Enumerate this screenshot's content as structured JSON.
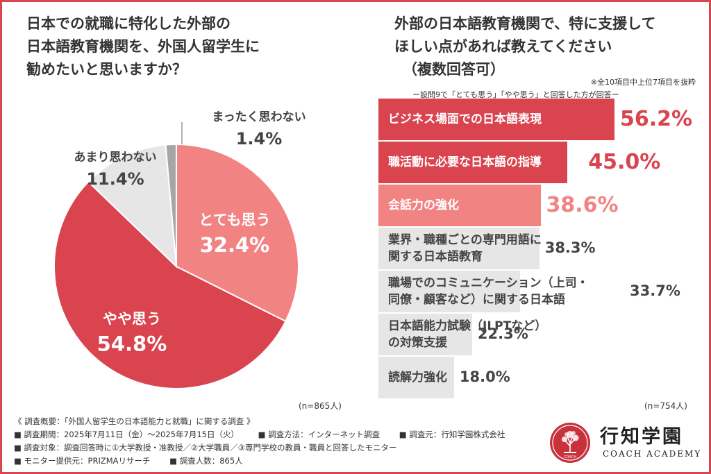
{
  "left_title": {
    "line1": "日本での就職に特化した外部の",
    "line2": "日本語教育機関を、外国人留学生に",
    "line3": "勧めたいと思いますか？"
  },
  "right_title": {
    "line1": "外部の日本語教育機関で、特に支援して",
    "line2": "ほしい点があれば教えてください",
    "line3": "（複数回答可）"
  },
  "right_note": "※全10項目中上位7項目を抜粋",
  "right_subnote": "ー設問9で「とても思う」「やや思う」と回答した方が回答ー",
  "n_left": "(n=865人)",
  "n_right": "(n=754人)",
  "colors": {
    "frame": "#d94550",
    "dark_red": "#d9444f",
    "pink": "#f28383",
    "light_gray": "#e6e6e6",
    "mid_gray": "#a6a6a6"
  },
  "chart_data": [
    {
      "type": "pie",
      "slices": [
        {
          "label": "とても思う",
          "value": 32.4,
          "value_text": "32.4%",
          "color": "#f28383"
        },
        {
          "label": "やや思う",
          "value": 54.8,
          "value_text": "54.8%",
          "color": "#d9444f"
        },
        {
          "label": "あまり思わない",
          "value": 11.4,
          "value_text": "11.4%",
          "color": "#e6e6e6"
        },
        {
          "label": "まったく思わない",
          "value": 1.4,
          "value_text": "1.4%",
          "color": "#a6a6a6"
        }
      ]
    },
    {
      "type": "bar",
      "orientation": "horizontal",
      "categories": [
        [
          "ビジネス場面での日本語表現"
        ],
        [
          "職活動に必要な日本語の指導"
        ],
        [
          "会話力の強化"
        ],
        [
          "業界・職種ごとの専門用語に",
          "関する日本語教育"
        ],
        [
          "職場でのコミュニケーション（上司・",
          "同僚・顧客など）に関する日本語"
        ],
        [
          "日本語能力試験（JLPTなど）",
          "の対策支援"
        ],
        [
          "読解力強化"
        ]
      ],
      "values": [
        56.2,
        45.0,
        38.6,
        38.3,
        33.7,
        22.3,
        18.0
      ],
      "value_texts": [
        "56.2%",
        "45.0%",
        "38.6%",
        "38.3%",
        "33.7%",
        "22.3%",
        "18.0%"
      ],
      "colors": [
        "#d9444f",
        "#d9444f",
        "#f28383",
        "#e6e6e6",
        "#e6e6e6",
        "#e6e6e6",
        "#e6e6e6"
      ]
    }
  ],
  "footer": {
    "overview": "《 調査概要：「外国人留学生の日本語能力と就職」に関する調査 》",
    "period": "■ 調査期間：2025年7月11日（金）〜2025年7月15日（火）",
    "method": "■ 調査方法：インターネット調査",
    "organizer": "■ 調査元：行知学園株式会社",
    "target": "■ 調査対象：調査回答時に①大学教授・准教授／②大学職員／③専門学校の教員・職員と回答したモニター",
    "provider": "■ モニター提供元：PRIZMAリサーチ",
    "count": "■ 調査人数：865人"
  },
  "logo": {
    "name": "行知学園",
    "sub": "COACH ACADEMY",
    "emblem_text": "COACH",
    "icon": "tree-emblem-icon"
  }
}
